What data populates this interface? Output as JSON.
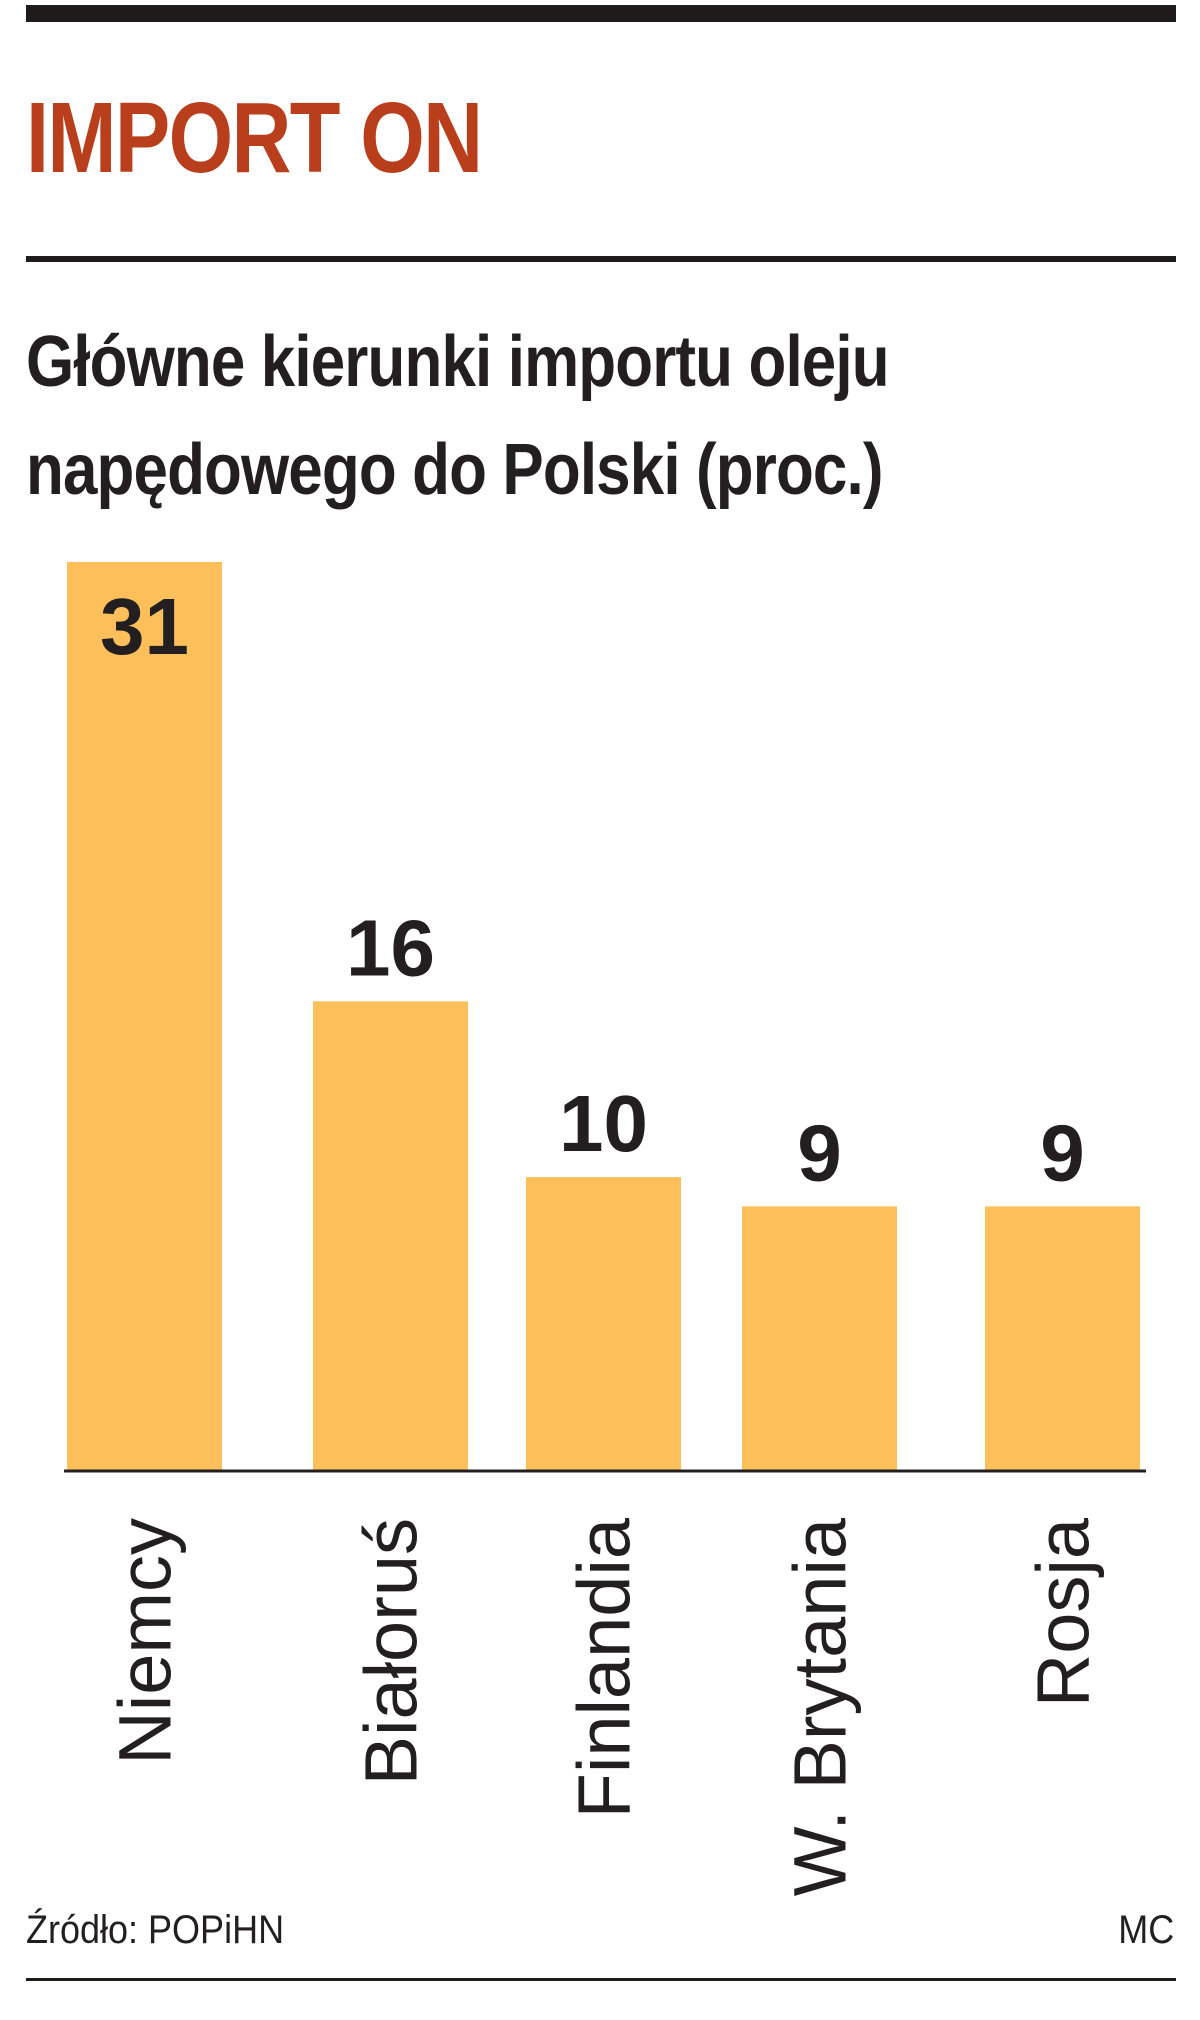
{
  "header": {
    "title": "IMPORT ON",
    "subtitle_line1": "Główne kierunki importu oleju",
    "subtitle_line2": "napędowego do Polski (proc.)"
  },
  "footer": {
    "source": "Źródło: POPiHN",
    "author": "MC"
  },
  "colors": {
    "bar": "#fdbf5a",
    "title": "#b83e1c",
    "text": "#231f20"
  },
  "chart_data": {
    "type": "bar",
    "title": "Główne kierunki importu oleju napędowego do Polski (proc.)",
    "categories": [
      "Niemcy",
      "Białoruś",
      "Finlandia",
      "W. Brytania",
      "Rosja"
    ],
    "values": [
      31,
      16,
      10,
      9,
      9
    ],
    "xlabel": "",
    "ylabel": "",
    "ylim": [
      0,
      31
    ],
    "grid": false,
    "legend": "none"
  }
}
